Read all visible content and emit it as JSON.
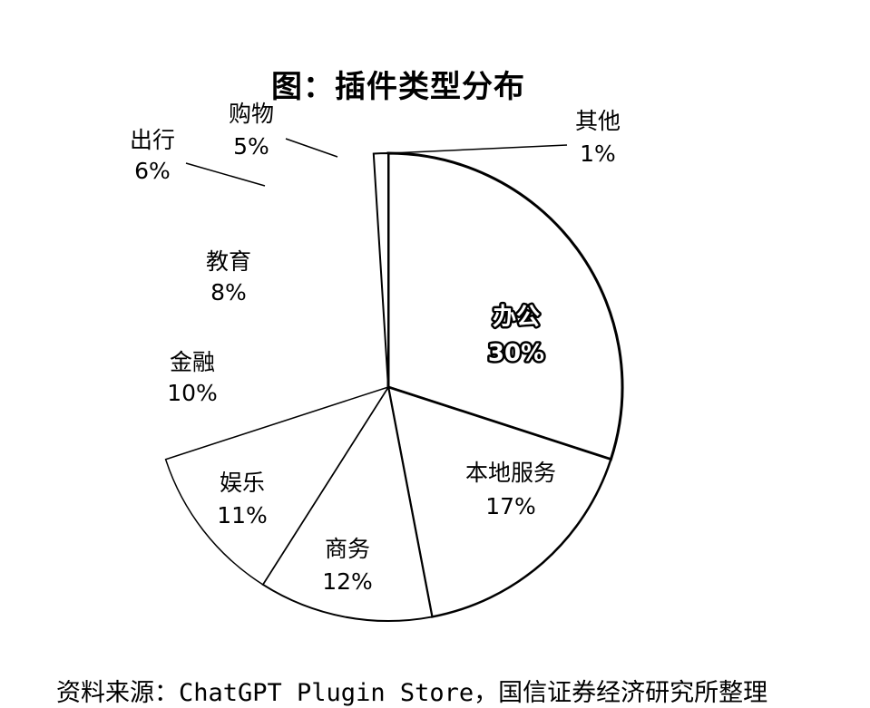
{
  "chart_data": {
    "type": "pie",
    "title": "图：插件类型分布",
    "slices": [
      {
        "label": "办公",
        "value": 30,
        "value_label": "30%"
      },
      {
        "label": "本地服务",
        "value": 17,
        "value_label": "17%"
      },
      {
        "label": "商务",
        "value": 12,
        "value_label": "12%"
      },
      {
        "label": "娱乐",
        "value": 11,
        "value_label": "11%"
      },
      {
        "label": "金融",
        "value": 10,
        "value_label": "10%"
      },
      {
        "label": "教育",
        "value": 8,
        "value_label": "8%"
      },
      {
        "label": "出行",
        "value": 6,
        "value_label": "6%"
      },
      {
        "label": "购物",
        "value": 5,
        "value_label": "5%"
      },
      {
        "label": "其他",
        "value": 1,
        "value_label": "1%"
      }
    ],
    "colors": {
      "fill": "#ffffff",
      "stroke": "#000000",
      "highlight_text": "#ffffff"
    }
  },
  "source": "资料来源：ChatGPT Plugin Store，国信证券经济研究所整理"
}
